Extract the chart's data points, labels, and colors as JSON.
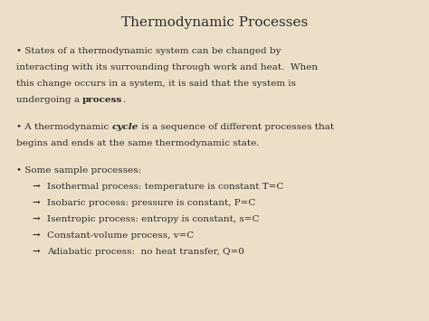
{
  "title": "Thermodynamic Processes",
  "bg_color": "#ecdfc8",
  "title_color": "#2b2b2b",
  "text_color": "#2b2b2b",
  "title_fontsize": 11,
  "body_fontsize": 7.5,
  "p1_lines": [
    "• States of a thermodynamic system can be changed by",
    "interacting with its surrounding through work and heat.  When",
    "this change occurs in a system, it is said that the system is"
  ],
  "p1_bold_line_pre": "undergoing a ",
  "p1_bold_word": "process",
  "p1_bold_line_post": ".",
  "p2_pre": "• A thermodynamic ",
  "p2_bold": "cycle",
  "p2_post": " is a sequence of different processes that",
  "p2_line2": "begins and ends at the same thermodynamic state.",
  "p3_header": "• Some sample processes:",
  "arrow": "→",
  "sub_items": [
    "Isothermal process: temperature is constant T=C",
    "Isobaric process: pressure is constant, P=C",
    "Isentropic process: entropy is constant, s=C",
    "Constant-volume process, v=C",
    "Adiabatic process:  no heat transfer, Q=0"
  ]
}
